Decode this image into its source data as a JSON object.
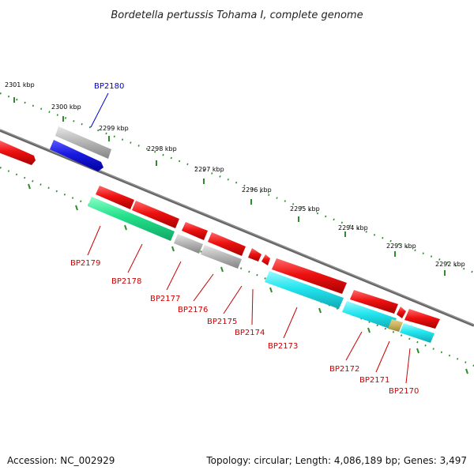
{
  "title": "Bordetella pertussis Tohama I, complete genome",
  "footer": {
    "accession": "Accession: NC_002929",
    "summary": "Topology: circular; Length: 4,086,189 bp; Genes: 3,497"
  },
  "colors": {
    "backbone": "#777777",
    "tick": "#2e8b2e",
    "label_reverse": "#cc0000",
    "label_forward": "#0000cc",
    "red_gene": "#ee1111",
    "gray_gene": "#b5b5b5",
    "blue_gene": "#1a1ae0",
    "green_gene": "#22e08a",
    "cyan_gene": "#22e5ee",
    "tan_gene": "#c8b35a"
  },
  "scale_labels": [
    "2301 kbp",
    "2300 kbp",
    "2299 kbp",
    "2298 kbp",
    "2297 kbp",
    "2296 kbp",
    "2295 kbp",
    "2294 kbp",
    "2293 kbp",
    "2292 kbp"
  ],
  "gene_labels": {
    "forward": [
      "BP2180"
    ],
    "reverse": [
      "BP2179",
      "BP2178",
      "BP2177",
      "BP2176",
      "BP2175",
      "BP2174",
      "BP2173",
      "BP2172",
      "BP2171",
      "BP2170"
    ]
  }
}
